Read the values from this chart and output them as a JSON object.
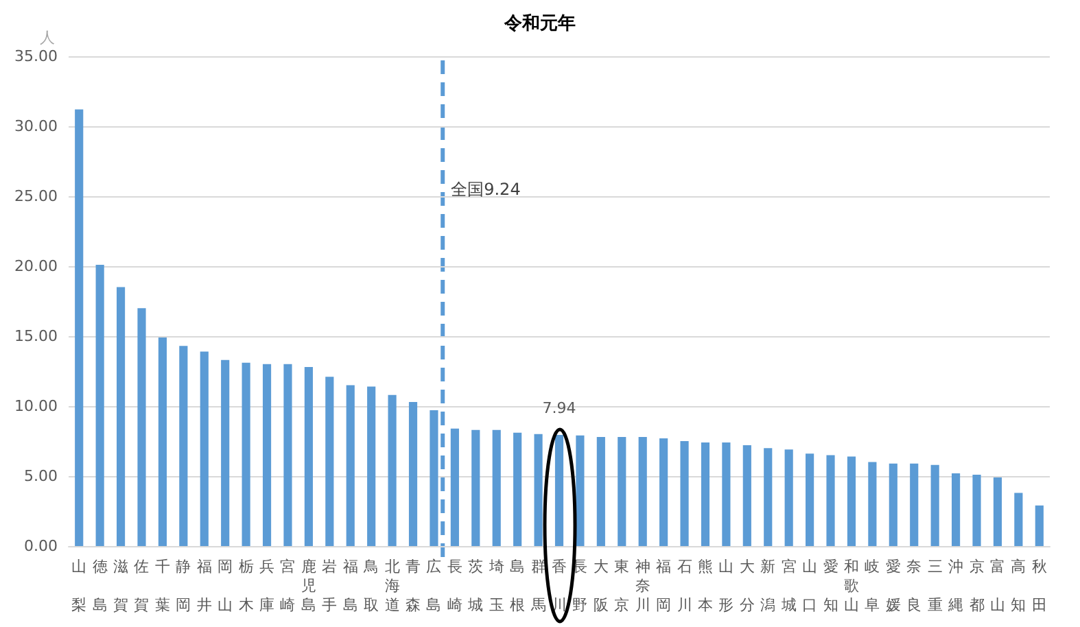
{
  "chart_data": {
    "type": "bar",
    "title": "令和元年",
    "ylabel": "人",
    "categories": [
      "山梨",
      "徳島",
      "滋賀",
      "佐賀",
      "千葉",
      "静岡",
      "福井",
      "岡山",
      "栃木",
      "兵庫",
      "宮崎",
      "鹿児島",
      "岩手",
      "福島",
      "鳥取",
      "北海道",
      "青森",
      "広島",
      "長崎",
      "茨城",
      "埼玉",
      "島根",
      "群馬",
      "香川",
      "長野",
      "大阪",
      "東京",
      "神奈川",
      "福岡",
      "石川",
      "熊本",
      "山形",
      "大分",
      "新潟",
      "宮城",
      "山口",
      "愛知",
      "和歌山",
      "岐阜",
      "愛媛",
      "奈良",
      "三重",
      "沖縄",
      "京都",
      "富山",
      "高知",
      "秋田"
    ],
    "values": [
      31.2,
      20.1,
      18.5,
      17.0,
      14.9,
      14.3,
      13.9,
      13.3,
      13.1,
      13.0,
      13.0,
      12.8,
      12.1,
      11.5,
      11.4,
      10.8,
      10.3,
      9.7,
      8.4,
      8.3,
      8.3,
      8.1,
      8.0,
      7.94,
      7.9,
      7.8,
      7.8,
      7.8,
      7.7,
      7.5,
      7.4,
      7.4,
      7.2,
      7.0,
      6.9,
      6.6,
      6.5,
      6.4,
      6.0,
      5.9,
      5.9,
      5.8,
      5.2,
      5.1,
      4.9,
      3.8,
      2.9
    ],
    "color": "#5b9bd5",
    "ylim": [
      0,
      35
    ],
    "yticks": [
      {
        "value": 0,
        "label": "0.00"
      },
      {
        "value": 5,
        "label": "5.00"
      },
      {
        "value": 10,
        "label": "10.00"
      },
      {
        "value": 15,
        "label": "15.00"
      },
      {
        "value": 20,
        "label": "20.00"
      },
      {
        "value": 25,
        "label": "25.00"
      },
      {
        "value": 30,
        "label": "30.00"
      },
      {
        "value": 35,
        "label": "35.00"
      }
    ],
    "grid": "y",
    "ref_lines": [
      {
        "axis": "x",
        "value": "広島",
        "label": "全国9.24",
        "color": "#5b9bd5",
        "line_style": "dashed"
      }
    ],
    "annotations": [
      {
        "text": "7.94",
        "x": "香川",
        "y": 7.94
      }
    ]
  }
}
